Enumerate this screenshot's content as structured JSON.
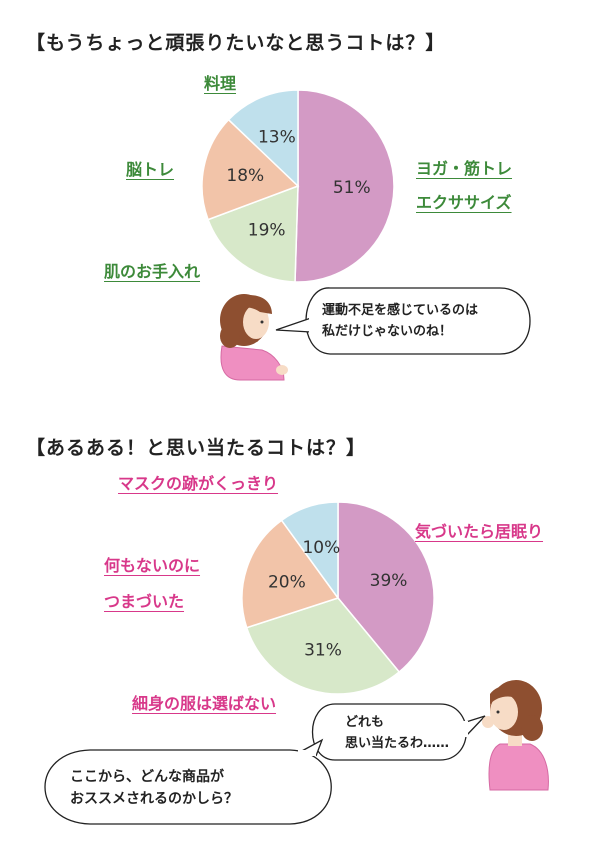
{
  "chart_data": [
    {
      "type": "pie",
      "title": "【もうちょっと頑張りたいなと思うコトは？】",
      "slices": [
        {
          "label_lines": [
            "ヨガ・筋トレ",
            "エクササイズ"
          ],
          "value": 51,
          "value_label": "51%",
          "color": "#d39ac5"
        },
        {
          "label_lines": [
            "肌のお手入れ"
          ],
          "value": 19,
          "value_label": "19%",
          "color": "#d7e8c9"
        },
        {
          "label_lines": [
            "脳トレ"
          ],
          "value": 18,
          "value_label": "18%",
          "color": "#f2c4a9"
        },
        {
          "label_lines": [
            "料理"
          ],
          "value": 13,
          "value_label": "13%",
          "color": "#bfe0ec"
        }
      ]
    },
    {
      "type": "pie",
      "title": "【あるある！と思い当たるコトは？】",
      "slices": [
        {
          "label_lines": [
            "気づいたら居眠り"
          ],
          "value": 39,
          "value_label": "39%",
          "color": "#d39ac5"
        },
        {
          "label_lines": [
            "細身の服は選ばない"
          ],
          "value": 31,
          "value_label": "31%",
          "color": "#d7e8c9"
        },
        {
          "label_lines": [
            "何もないのに",
            "つまづいた"
          ],
          "value": 20,
          "value_label": "20%",
          "color": "#f2c4a9"
        },
        {
          "label_lines": [
            "マスクの跡がくっきり"
          ],
          "value": 10,
          "value_label": "10%",
          "color": "#bfe0ec"
        }
      ]
    }
  ],
  "bubbles": {
    "top": [
      "運動不足を感じているのは",
      "私だけじゃないのね！"
    ],
    "right": [
      "どれも",
      "思い当たるわ……"
    ],
    "bottom": [
      "ここから、どんな商品が",
      "おススメされるのかしら？"
    ]
  },
  "colors": {
    "label_green": "#3d8a3a",
    "label_pink": "#d8388a",
    "hair": "#8e4f30",
    "skin": "#f7dcc6",
    "shirt": "#ef8fc1"
  }
}
